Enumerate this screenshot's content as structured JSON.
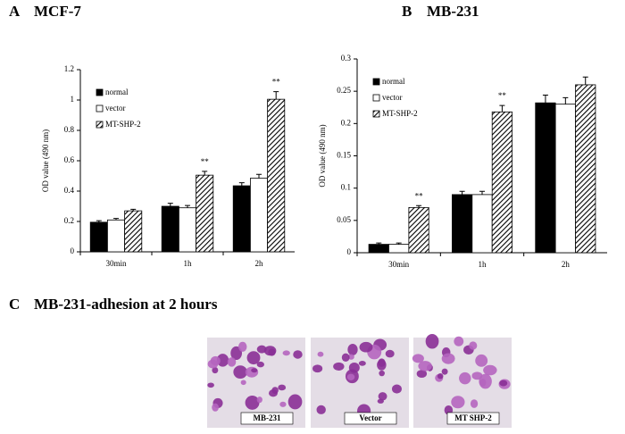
{
  "chart_data": [
    {
      "type": "bar",
      "panel": "A",
      "title": "MCF-7",
      "y_label": "OD value (490 nm)",
      "categories": [
        "30min",
        "1h",
        "2h"
      ],
      "series": [
        {
          "name": "normal",
          "color": "#000000",
          "values": [
            0.195,
            0.3,
            0.435
          ],
          "errors": [
            0.01,
            0.02,
            0.02
          ]
        },
        {
          "name": "vector",
          "color": "#ffffff",
          "values": [
            0.21,
            0.29,
            0.485
          ],
          "errors": [
            0.01,
            0.015,
            0.025
          ]
        },
        {
          "name": "MT-SHP-2",
          "color": "#000000",
          "hatch": true,
          "values": [
            0.27,
            0.505,
            1.005
          ],
          "errors": [
            0.01,
            0.025,
            0.05
          ],
          "annotations": [
            null,
            "**",
            "**"
          ]
        }
      ],
      "ylim": [
        0,
        1.2
      ],
      "yticks": [
        0,
        0.2,
        0.4,
        0.6,
        0.8,
        1,
        1.2
      ],
      "legend": "top-left"
    },
    {
      "type": "bar",
      "panel": "B",
      "title": "MB-231",
      "y_label": "OD value (490 nm)",
      "categories": [
        "30min",
        "1h",
        "2h"
      ],
      "series": [
        {
          "name": "normal",
          "color": "#000000",
          "values": [
            0.013,
            0.09,
            0.232
          ],
          "errors": [
            0.002,
            0.005,
            0.012
          ]
        },
        {
          "name": "vector",
          "color": "#ffffff",
          "values": [
            0.013,
            0.09,
            0.23
          ],
          "errors": [
            0.002,
            0.005,
            0.01
          ]
        },
        {
          "name": "MT-SHP-2",
          "color": "#000000",
          "hatch": true,
          "values": [
            0.07,
            0.218,
            0.26
          ],
          "errors": [
            0.003,
            0.01,
            0.012
          ],
          "annotations": [
            "**",
            "**",
            null
          ]
        }
      ],
      "ylim": [
        0,
        0.3
      ],
      "yticks": [
        0,
        0.05,
        0.1,
        0.15,
        0.2,
        0.25,
        0.3
      ],
      "legend": "top-left"
    }
  ],
  "panel_c": {
    "panel": "C",
    "title": "MB-231-adhesion at 2 hours",
    "images": [
      "MB-231",
      "Vector",
      "MT SHP-2"
    ]
  }
}
